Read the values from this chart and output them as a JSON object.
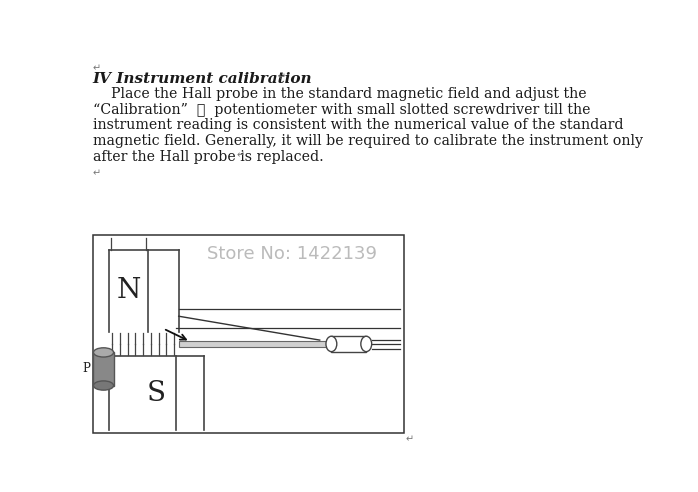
{
  "bg_color": "#ffffff",
  "title_text": "IV Instrument calibration",
  "body_lines": [
    "    Place the Hall probe in the standard magnetic field and adjust the",
    "“Calibration”  ⓦ  potentiometer with small slotted screwdriver till the",
    "instrument reading is consistent with the numerical value of the standard",
    "magnetic field. Generally, it will be required to calibrate the instrument only",
    "after the Hall probe is replaced."
  ],
  "store_text": "Store No: 1422139",
  "store_color": "#bbbbbb",
  "text_color": "#1a1a1a",
  "line_symbol": "↵",
  "magnet_lc": "#444444",
  "cylinder_fill": "#888888",
  "cylinder_top": "#aaaaaa"
}
